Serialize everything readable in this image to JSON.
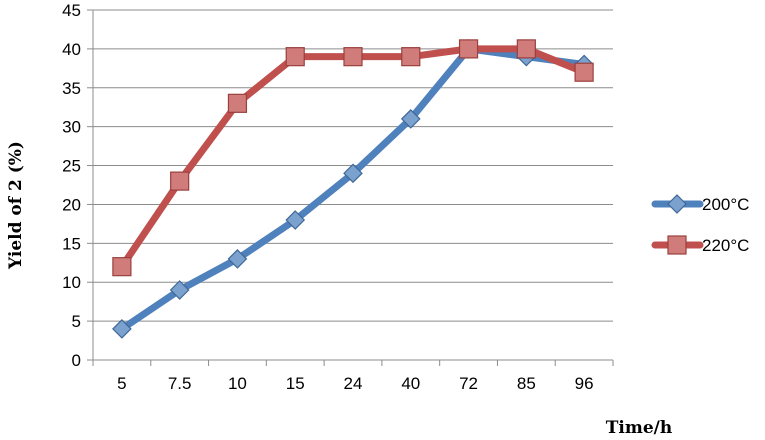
{
  "chart_data": {
    "type": "line",
    "categories": [
      "5",
      "7.5",
      "10",
      "15",
      "24",
      "40",
      "72",
      "85",
      "96"
    ],
    "series": [
      {
        "name": "200°C",
        "values": [
          4,
          9,
          13,
          18,
          24,
          31,
          40,
          39,
          38
        ],
        "color": "#4F81BD",
        "marker": "diamond"
      },
      {
        "name": "220°C",
        "values": [
          12,
          23,
          33,
          39,
          39,
          39,
          40,
          40,
          37
        ],
        "color": "#C0504D",
        "marker": "square"
      }
    ],
    "xlabel": "Time/h",
    "ylabel": "Yield of 2 (%)",
    "ylim": [
      0,
      45
    ],
    "yticks": [
      "0",
      "5",
      "10",
      "15",
      "20",
      "25",
      "30",
      "35",
      "40",
      "45"
    ],
    "grid": true,
    "legend_position": "right"
  }
}
